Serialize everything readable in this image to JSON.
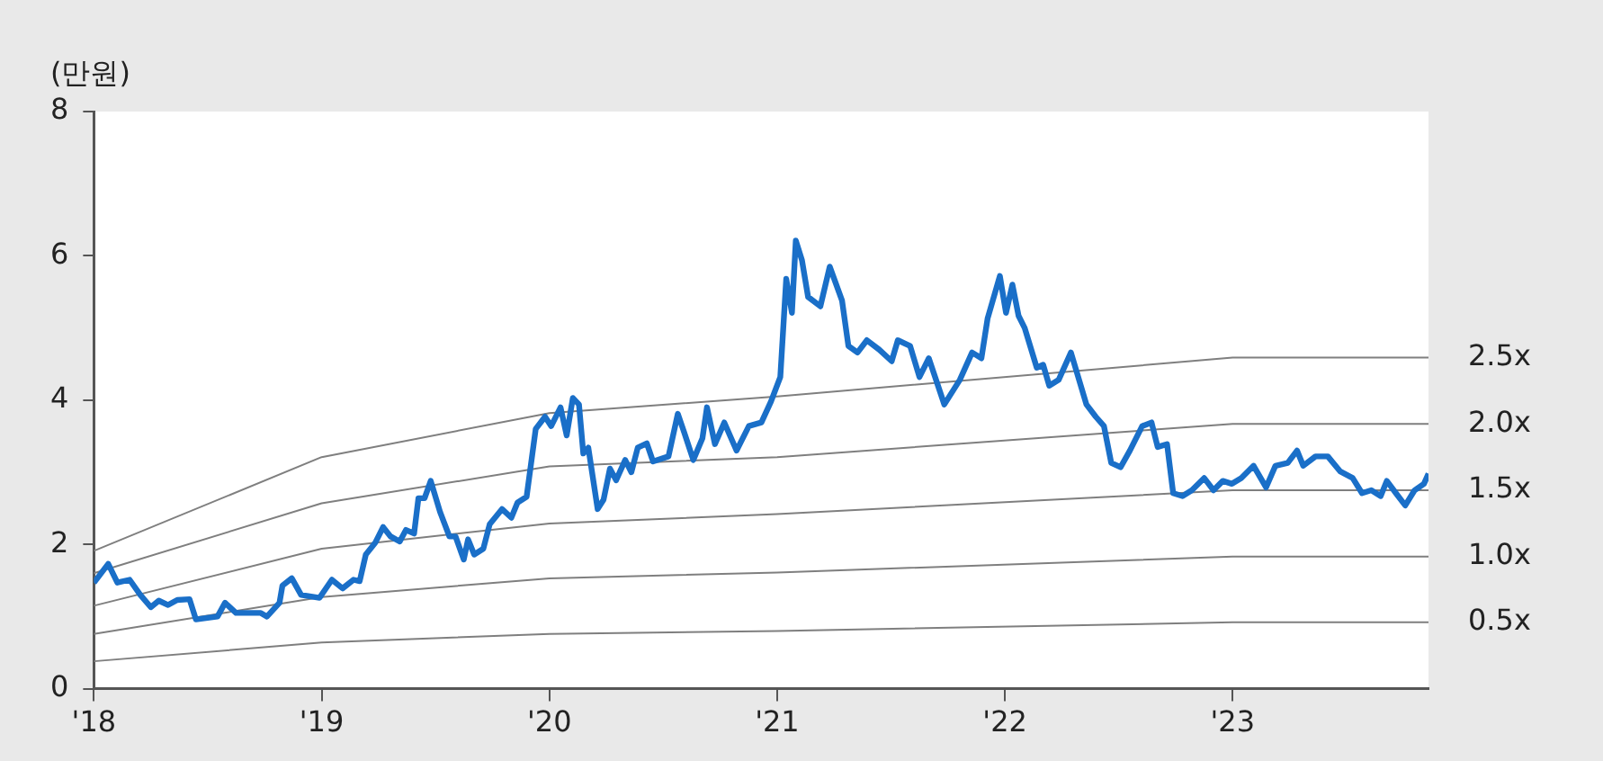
{
  "chart_data": {
    "type": "line",
    "ylabel": "(만원)",
    "xlim": [
      2018,
      2023.86
    ],
    "ylim": [
      0,
      8
    ],
    "yticks": [
      0,
      2,
      4,
      6,
      8
    ],
    "xticks": [
      {
        "value": 2018,
        "label": "'18"
      },
      {
        "value": 2019,
        "label": "'19"
      },
      {
        "value": 2020,
        "label": "'20"
      },
      {
        "value": 2021,
        "label": "'21"
      },
      {
        "value": 2022,
        "label": "'22"
      },
      {
        "value": 2023,
        "label": "'23"
      }
    ],
    "grid": false,
    "legend": false,
    "marker": "none",
    "line_style": "solid",
    "series": [
      {
        "name": "2.5x",
        "color": "#7f7f7f",
        "x": [
          2018,
          2019,
          2020,
          2021,
          2023,
          2023.86
        ],
        "values": [
          1.91,
          3.21,
          3.82,
          4.05,
          4.59,
          4.59
        ]
      },
      {
        "name": "2.0x",
        "color": "#7f7f7f",
        "x": [
          2018,
          2019,
          2020,
          2021,
          2023,
          2023.86
        ],
        "values": [
          1.6,
          2.57,
          3.08,
          3.21,
          3.67,
          3.67
        ]
      },
      {
        "name": "1.5x",
        "color": "#7f7f7f",
        "x": [
          2018,
          2019,
          2020,
          2021,
          2023,
          2023.86
        ],
        "values": [
          1.15,
          1.94,
          2.29,
          2.42,
          2.75,
          2.75
        ]
      },
      {
        "name": "1.0x",
        "color": "#7f7f7f",
        "x": [
          2018,
          2019,
          2020,
          2021,
          2023,
          2023.86
        ],
        "values": [
          0.76,
          1.27,
          1.53,
          1.61,
          1.83,
          1.83
        ]
      },
      {
        "name": "0.5x",
        "color": "#7f7f7f",
        "x": [
          2018,
          2019,
          2020,
          2021,
          2023,
          2023.86
        ],
        "values": [
          0.38,
          0.64,
          0.76,
          0.8,
          0.92,
          0.92
        ]
      },
      {
        "color": "#1a6fc8",
        "x": [
          2018.0,
          2018.063,
          2018.103,
          2018.157,
          2018.204,
          2018.25,
          2018.285,
          2018.326,
          2018.366,
          2018.42,
          2018.448,
          2018.543,
          2018.576,
          2018.624,
          2018.733,
          2018.76,
          2018.815,
          2018.828,
          2018.869,
          2018.91,
          2018.991,
          2019.045,
          2019.092,
          2019.14,
          2019.167,
          2019.194,
          2019.235,
          2019.27,
          2019.303,
          2019.343,
          2019.37,
          2019.406,
          2019.425,
          2019.452,
          2019.479,
          2019.52,
          2019.561,
          2019.588,
          2019.624,
          2019.643,
          2019.67,
          2019.71,
          2019.738,
          2019.792,
          2019.833,
          2019.86,
          2019.9,
          2019.94,
          2019.981,
          2020.008,
          2020.049,
          2020.076,
          2020.103,
          2020.13,
          2020.149,
          2020.171,
          2020.212,
          2020.238,
          2020.266,
          2020.293,
          2020.333,
          2020.36,
          2020.388,
          2020.428,
          2020.455,
          2020.523,
          2020.564,
          2020.591,
          2020.632,
          2020.672,
          2020.692,
          2020.727,
          2020.768,
          2020.822,
          2020.876,
          2020.931,
          2020.973,
          2021.014,
          2021.04,
          2021.065,
          2021.082,
          2021.109,
          2021.136,
          2021.19,
          2021.231,
          2021.285,
          2021.313,
          2021.353,
          2021.394,
          2021.448,
          2021.503,
          2021.53,
          2021.584,
          2021.625,
          2021.666,
          2021.734,
          2021.802,
          2021.856,
          2021.897,
          2021.924,
          2021.978,
          2022.005,
          2022.033,
          2022.06,
          2022.087,
          2022.14,
          2022.168,
          2022.195,
          2022.236,
          2022.29,
          2022.358,
          2022.399,
          2022.435,
          2022.467,
          2022.508,
          2022.549,
          2022.603,
          2022.644,
          2022.671,
          2022.712,
          2022.739,
          2022.78,
          2022.821,
          2022.875,
          2022.916,
          2022.957,
          2022.997,
          2023.038,
          2023.092,
          2023.147,
          2023.188,
          2023.242,
          2023.283,
          2023.31,
          2023.364,
          2023.418,
          2023.473,
          2023.527,
          2023.568,
          2023.609,
          2023.65,
          2023.677,
          2023.717,
          2023.758,
          2023.799,
          2023.84,
          2023.86
        ],
        "values": [
          1.47,
          1.73,
          1.47,
          1.51,
          1.3,
          1.13,
          1.22,
          1.16,
          1.23,
          1.24,
          0.96,
          1.0,
          1.19,
          1.05,
          1.05,
          1.0,
          1.19,
          1.43,
          1.53,
          1.3,
          1.26,
          1.51,
          1.39,
          1.51,
          1.49,
          1.86,
          2.02,
          2.24,
          2.11,
          2.04,
          2.2,
          2.15,
          2.64,
          2.64,
          2.88,
          2.45,
          2.11,
          2.11,
          1.79,
          2.07,
          1.86,
          1.94,
          2.28,
          2.49,
          2.37,
          2.58,
          2.66,
          3.6,
          3.77,
          3.64,
          3.9,
          3.51,
          4.03,
          3.94,
          3.26,
          3.34,
          2.49,
          2.62,
          3.05,
          2.89,
          3.17,
          3.0,
          3.34,
          3.4,
          3.15,
          3.22,
          3.81,
          3.56,
          3.17,
          3.47,
          3.9,
          3.39,
          3.69,
          3.3,
          3.64,
          3.69,
          3.98,
          4.32,
          5.68,
          5.21,
          6.21,
          5.94,
          5.43,
          5.3,
          5.85,
          5.38,
          4.75,
          4.66,
          4.83,
          4.7,
          4.54,
          4.83,
          4.75,
          4.32,
          4.58,
          3.94,
          4.28,
          4.66,
          4.58,
          5.13,
          5.72,
          5.21,
          5.6,
          5.17,
          5.0,
          4.45,
          4.49,
          4.2,
          4.28,
          4.66,
          3.94,
          3.77,
          3.64,
          3.13,
          3.07,
          3.3,
          3.64,
          3.69,
          3.35,
          3.39,
          2.71,
          2.67,
          2.75,
          2.92,
          2.75,
          2.88,
          2.84,
          2.92,
          3.09,
          2.79,
          3.09,
          3.13,
          3.3,
          3.09,
          3.22,
          3.22,
          3.01,
          2.92,
          2.71,
          2.75,
          2.67,
          2.88,
          2.71,
          2.54,
          2.75,
          2.84,
          2.98
        ]
      }
    ]
  }
}
